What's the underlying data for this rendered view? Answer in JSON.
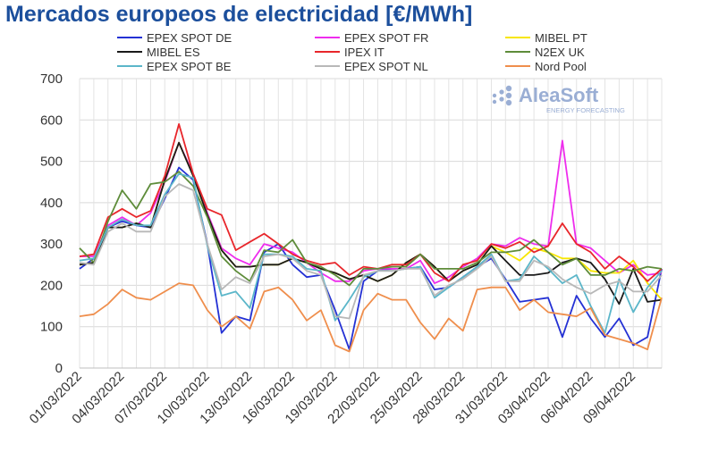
{
  "chart_data": {
    "type": "line",
    "title": "Mercados europeos de electricidad [€/MWh]",
    "xlabel": "",
    "ylabel": "",
    "ylim": [
      0,
      700
    ],
    "yticks": [
      0,
      100,
      200,
      300,
      400,
      500,
      600,
      700
    ],
    "grid": true,
    "legend_position": "top",
    "x": [
      "01/03/2022",
      "02/03/2022",
      "03/03/2022",
      "04/03/2022",
      "05/03/2022",
      "06/03/2022",
      "07/03/2022",
      "08/03/2022",
      "09/03/2022",
      "10/03/2022",
      "11/03/2022",
      "12/03/2022",
      "13/03/2022",
      "14/03/2022",
      "15/03/2022",
      "16/03/2022",
      "17/03/2022",
      "18/03/2022",
      "19/03/2022",
      "20/03/2022",
      "21/03/2022",
      "22/03/2022",
      "23/03/2022",
      "24/03/2022",
      "25/03/2022",
      "26/03/2022",
      "27/03/2022",
      "28/03/2022",
      "29/03/2022",
      "30/03/2022",
      "31/03/2022",
      "01/04/2022",
      "02/04/2022",
      "03/04/2022",
      "04/04/2022",
      "05/04/2022",
      "06/04/2022",
      "07/04/2022",
      "08/04/2022",
      "09/04/2022",
      "10/04/2022",
      "11/04/2022"
    ],
    "xtick_labels": [
      "01/03/2022",
      "04/03/2022",
      "07/03/2022",
      "10/03/2022",
      "13/03/2022",
      "16/03/2022",
      "19/03/2022",
      "22/03/2022",
      "25/03/2022",
      "28/03/2022",
      "31/03/2022",
      "03/04/2022",
      "06/04/2022",
      "09/04/2022"
    ],
    "series": [
      {
        "name": "EPEX SPOT DE",
        "color": "#2431d4",
        "values": [
          240,
          265,
          340,
          355,
          345,
          340,
          410,
          485,
          455,
          300,
          85,
          125,
          115,
          280,
          300,
          250,
          220,
          225,
          140,
          45,
          210,
          235,
          240,
          240,
          245,
          190,
          195,
          220,
          245,
          265,
          215,
          160,
          165,
          170,
          75,
          175,
          120,
          75,
          120,
          55,
          75,
          240
        ]
      },
      {
        "name": "EPEX SPOT FR",
        "color": "#ee2ded",
        "values": [
          270,
          270,
          345,
          365,
          345,
          375,
          450,
          545,
          470,
          375,
          290,
          265,
          250,
          300,
          290,
          280,
          255,
          230,
          210,
          210,
          235,
          240,
          240,
          240,
          260,
          205,
          220,
          245,
          265,
          300,
          295,
          315,
          300,
          295,
          550,
          300,
          290,
          260,
          230,
          250,
          225,
          230
        ]
      },
      {
        "name": "MIBEL PT",
        "color": "#f7e600",
        "values": [
          250,
          255,
          340,
          340,
          350,
          340,
          455,
          545,
          465,
          370,
          285,
          245,
          245,
          250,
          250,
          265,
          255,
          240,
          230,
          215,
          225,
          210,
          225,
          255,
          275,
          245,
          210,
          235,
          250,
          295,
          280,
          260,
          290,
          280,
          265,
          265,
          235,
          230,
          230,
          260,
          205,
          165
        ]
      },
      {
        "name": "MIBEL ES",
        "color": "#1a1a1a",
        "values": [
          250,
          255,
          340,
          340,
          350,
          340,
          455,
          545,
          465,
          370,
          285,
          245,
          245,
          250,
          250,
          265,
          255,
          240,
          230,
          215,
          225,
          210,
          225,
          255,
          275,
          245,
          210,
          235,
          250,
          295,
          260,
          225,
          225,
          230,
          255,
          265,
          255,
          215,
          155,
          240,
          160,
          165
        ]
      },
      {
        "name": "IPEX IT",
        "color": "#e8262b",
        "values": [
          270,
          275,
          365,
          385,
          365,
          380,
          465,
          590,
          470,
          385,
          370,
          285,
          305,
          325,
          300,
          275,
          260,
          250,
          255,
          225,
          245,
          240,
          250,
          250,
          275,
          230,
          210,
          250,
          260,
          300,
          290,
          305,
          280,
          295,
          350,
          300,
          280,
          240,
          270,
          245,
          210,
          240
        ]
      },
      {
        "name": "N2EX UK",
        "color": "#5e8c3a",
        "values": [
          290,
          255,
          355,
          430,
          385,
          445,
          450,
          475,
          440,
          365,
          270,
          235,
          210,
          285,
          280,
          310,
          255,
          245,
          225,
          200,
          240,
          240,
          245,
          245,
          275,
          240,
          240,
          240,
          255,
          280,
          280,
          285,
          310,
          280,
          250,
          265,
          225,
          225,
          240,
          235,
          245,
          240
        ]
      },
      {
        "name": "EPEX SPOT BE",
        "color": "#5bb6c9",
        "values": [
          260,
          265,
          340,
          360,
          345,
          345,
          420,
          470,
          460,
          295,
          175,
          185,
          145,
          275,
          275,
          270,
          240,
          235,
          115,
          165,
          220,
          235,
          235,
          240,
          245,
          170,
          195,
          220,
          245,
          275,
          210,
          215,
          270,
          240,
          205,
          225,
          150,
          85,
          215,
          135,
          195,
          235
        ]
      },
      {
        "name": "EPEX SPOT NL",
        "color": "#b8b8b8",
        "values": [
          255,
          250,
          330,
          350,
          330,
          330,
          415,
          445,
          430,
          300,
          190,
          220,
          205,
          270,
          275,
          265,
          235,
          225,
          125,
          120,
          225,
          235,
          235,
          240,
          240,
          175,
          200,
          215,
          240,
          270,
          210,
          210,
          260,
          245,
          215,
          195,
          180,
          200,
          210,
          185,
          185,
          225
        ]
      },
      {
        "name": "Nord Pool",
        "color": "#ef8e4c",
        "values": [
          125,
          130,
          155,
          190,
          170,
          165,
          185,
          205,
          200,
          140,
          100,
          125,
          95,
          185,
          195,
          165,
          115,
          140,
          55,
          40,
          140,
          180,
          165,
          165,
          110,
          70,
          120,
          90,
          190,
          195,
          195,
          140,
          165,
          135,
          130,
          125,
          145,
          80,
          70,
          60,
          45,
          170
        ]
      }
    ]
  },
  "legend": [
    {
      "label": "EPEX SPOT DE",
      "color": "#2431d4"
    },
    {
      "label": "EPEX SPOT FR",
      "color": "#ee2ded"
    },
    {
      "label": "MIBEL PT",
      "color": "#f7e600"
    },
    {
      "label": "MIBEL ES",
      "color": "#1a1a1a"
    },
    {
      "label": "IPEX IT",
      "color": "#e8262b"
    },
    {
      "label": "N2EX UK",
      "color": "#5e8c3a"
    },
    {
      "label": "EPEX SPOT BE",
      "color": "#5bb6c9"
    },
    {
      "label": "EPEX SPOT NL",
      "color": "#b8b8b8"
    },
    {
      "label": "Nord Pool",
      "color": "#ef8e4c"
    }
  ],
  "logo": {
    "name": "AleaSoft",
    "tagline": "ENERGY FORECASTING",
    "color": "#9aaed4"
  }
}
